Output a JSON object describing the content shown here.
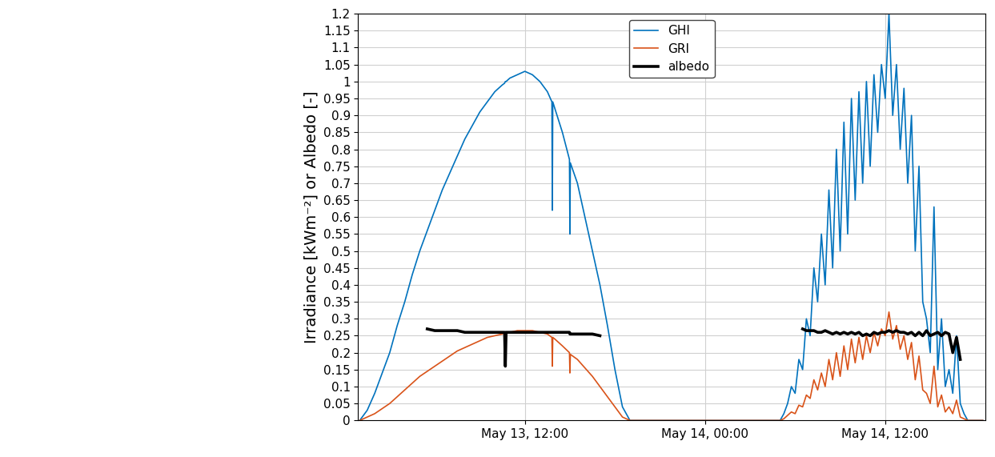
{
  "chart_data": {
    "type": "line",
    "y_label": "Irradiance [kWm⁻²] or Albedo [-]",
    "x": [
      1.0,
      1.5,
      2.0,
      2.5,
      3.0,
      3.5,
      4.0,
      4.5,
      5.0,
      5.5,
      6.0,
      6.5,
      7.0,
      7.5,
      8.0,
      8.5,
      9.0,
      9.5,
      10.0,
      10.5,
      10.65,
      10.7,
      10.75,
      11.0,
      11.5,
      12.0,
      12.5,
      13.0,
      13.5,
      13.8,
      13.83,
      13.86,
      14.0,
      14.5,
      14.97,
      15.0,
      15.03,
      15.5,
      16.0,
      16.5,
      17.0,
      17.5,
      18.0,
      18.5,
      19.0,
      24.0,
      29.0,
      29.25,
      29.5,
      29.75,
      30.0,
      30.25,
      30.5,
      30.75,
      31.0,
      31.25,
      31.5,
      31.75,
      32.0,
      32.25,
      32.5,
      32.75,
      33.0,
      33.25,
      33.5,
      33.75,
      34.0,
      34.25,
      34.5,
      34.75,
      35.0,
      35.25,
      35.5,
      35.75,
      36.0,
      36.25,
      36.5,
      36.75,
      37.0,
      37.25,
      37.5,
      37.75,
      38.0,
      38.25,
      38.5,
      38.75,
      39.0,
      39.25,
      39.5,
      39.75,
      40.0,
      40.25,
      40.5,
      40.75,
      41.0,
      41.25,
      41.5,
      41.75,
      42.0,
      42.25,
      42.5
    ],
    "series": [
      {
        "name": "GHI",
        "color": "#0072BD",
        "values": [
          0,
          0.03,
          0.08,
          0.14,
          0.2,
          0.28,
          0.35,
          0.43,
          0.5,
          0.56,
          0.62,
          0.68,
          0.73,
          0.78,
          0.83,
          0.87,
          0.91,
          0.94,
          0.97,
          0.99,
          0.995,
          1.0,
          1.0,
          1.01,
          1.02,
          1.03,
          1.02,
          1.0,
          0.97,
          0.94,
          0.62,
          0.94,
          0.92,
          0.85,
          0.77,
          0.55,
          0.76,
          0.7,
          0.6,
          0.5,
          0.4,
          0.28,
          0.15,
          0.04,
          0,
          0,
          0,
          0.02,
          0.05,
          0.1,
          0.08,
          0.18,
          0.15,
          0.3,
          0.25,
          0.45,
          0.35,
          0.55,
          0.4,
          0.68,
          0.45,
          0.8,
          0.5,
          0.88,
          0.55,
          0.95,
          0.65,
          0.97,
          0.7,
          1.0,
          0.75,
          1.02,
          0.85,
          1.05,
          0.95,
          1.2,
          0.9,
          1.05,
          0.8,
          0.98,
          0.7,
          0.9,
          0.5,
          0.75,
          0.35,
          0.3,
          0.2,
          0.63,
          0.15,
          0.3,
          0.1,
          0.15,
          0.08,
          0.25,
          0.05,
          0.02,
          0,
          0,
          0,
          0,
          0
        ]
      },
      {
        "name": "GRI",
        "color": "#D95319",
        "values": [
          0,
          0.01,
          0.02,
          0.035,
          0.05,
          0.07,
          0.09,
          0.11,
          0.13,
          0.145,
          0.16,
          0.175,
          0.19,
          0.205,
          0.215,
          0.225,
          0.235,
          0.245,
          0.25,
          0.255,
          0.26,
          0.26,
          0.26,
          0.26,
          0.265,
          0.265,
          0.265,
          0.26,
          0.255,
          0.245,
          0.16,
          0.245,
          0.24,
          0.22,
          0.2,
          0.14,
          0.195,
          0.18,
          0.155,
          0.13,
          0.1,
          0.07,
          0.04,
          0.01,
          0,
          0,
          0,
          0.005,
          0.015,
          0.025,
          0.02,
          0.045,
          0.04,
          0.075,
          0.065,
          0.12,
          0.09,
          0.14,
          0.1,
          0.18,
          0.12,
          0.2,
          0.13,
          0.22,
          0.15,
          0.24,
          0.17,
          0.245,
          0.18,
          0.25,
          0.2,
          0.26,
          0.22,
          0.27,
          0.25,
          0.32,
          0.24,
          0.28,
          0.21,
          0.25,
          0.18,
          0.23,
          0.12,
          0.19,
          0.09,
          0.08,
          0.05,
          0.16,
          0.04,
          0.075,
          0.025,
          0.04,
          0.02,
          0.06,
          0.01,
          0.005,
          0,
          0,
          0,
          0,
          0
        ]
      },
      {
        "name": "albedo",
        "color": "#000000",
        "values": [
          null,
          null,
          null,
          null,
          null,
          null,
          null,
          null,
          null,
          0.27,
          0.265,
          0.265,
          0.265,
          0.265,
          0.26,
          0.26,
          0.26,
          0.26,
          0.26,
          0.26,
          0.26,
          0.16,
          0.26,
          0.26,
          0.26,
          0.26,
          0.26,
          0.26,
          0.26,
          0.26,
          0.26,
          0.26,
          0.26,
          0.26,
          0.26,
          0.255,
          0.255,
          0.255,
          0.255,
          0.255,
          0.25,
          null,
          null,
          null,
          null,
          null,
          null,
          null,
          null,
          null,
          null,
          null,
          0.27,
          0.265,
          0.265,
          0.265,
          0.26,
          0.26,
          0.265,
          0.26,
          0.255,
          0.26,
          0.255,
          0.26,
          0.255,
          0.26,
          0.255,
          0.26,
          0.25,
          0.255,
          0.25,
          0.26,
          0.255,
          0.26,
          0.26,
          0.265,
          0.26,
          0.265,
          0.26,
          0.26,
          0.255,
          0.26,
          0.25,
          0.26,
          0.25,
          0.265,
          0.25,
          0.255,
          0.26,
          0.25,
          0.26,
          0.255,
          0.2,
          0.245,
          0.18,
          null,
          null,
          null,
          null,
          null,
          null
        ]
      }
    ],
    "xlim": [
      0.9,
      42.65
    ],
    "xticks": [
      {
        "value": 12,
        "label": "May 13, 12:00"
      },
      {
        "value": 24,
        "label": "May 14, 00:00"
      },
      {
        "value": 36,
        "label": "May 14, 12:00"
      }
    ],
    "ylim": [
      0,
      1.2
    ],
    "yticks": [
      0,
      0.05,
      0.1,
      0.15,
      0.2,
      0.25,
      0.3,
      0.35,
      0.4,
      0.45,
      0.5,
      0.55,
      0.6,
      0.65,
      0.7,
      0.75,
      0.8,
      0.85,
      0.9,
      0.95,
      1,
      1.05,
      1.1,
      1.15,
      1.2
    ],
    "grid": true,
    "legend": "upper center"
  }
}
